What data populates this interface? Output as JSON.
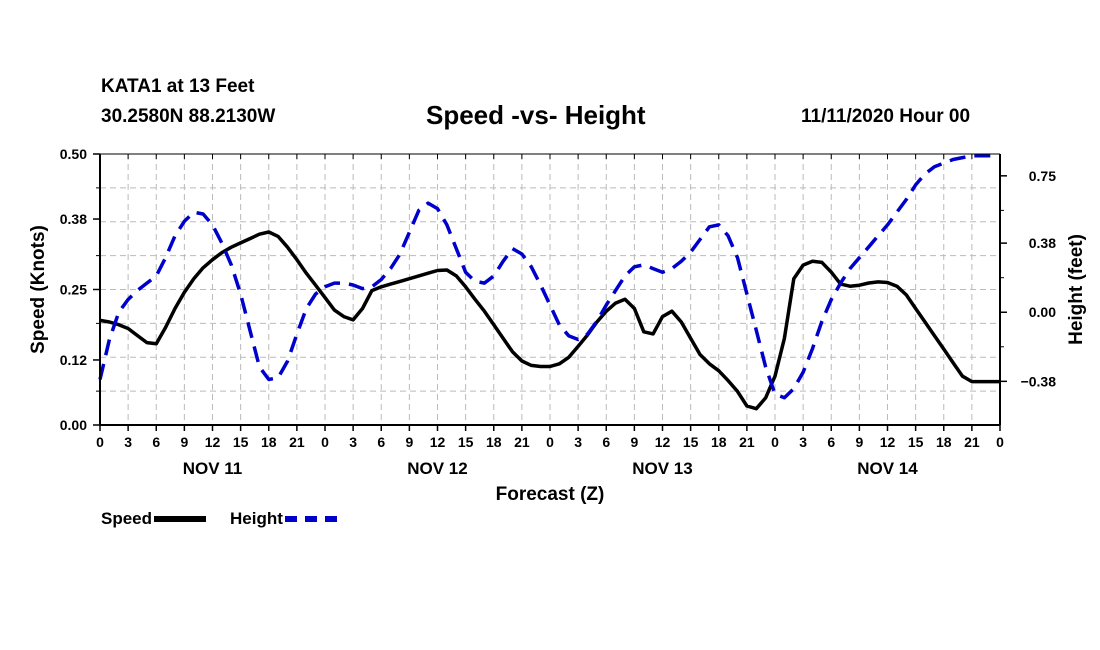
{
  "header": {
    "station": "KATA1 at 13 Feet",
    "location": "30.2580N 88.2130W",
    "title": "Speed -vs- Height",
    "run": "11/11/2020 Hour 00"
  },
  "legend": {
    "speed_label": "Speed",
    "height_label": "Height"
  },
  "colors": {
    "speed": "#000000",
    "height": "#0000cc",
    "grid": "#bbbbbb"
  },
  "chart_data": {
    "type": "line",
    "title": "Speed -vs- Height",
    "xlabel": "Forecast (Z)",
    "ylabel_left": "Speed (Knots)",
    "ylabel_right": "Height (feet)",
    "x_range_hours": [
      0,
      96
    ],
    "y_left_range": [
      0,
      0.5
    ],
    "y_right_range": [
      -0.62,
      0.87
    ],
    "y_left_ticks": [
      0.0,
      0.12,
      0.25,
      0.38,
      0.5
    ],
    "y_left_tick_labels": [
      "0.00",
      "0.12",
      "0.25",
      "0.38",
      "0.50"
    ],
    "y_right_ticks": [
      -0.38,
      0.0,
      0.38,
      0.75
    ],
    "y_right_tick_labels": [
      "−0.38",
      "0.00",
      "0.38",
      "0.75"
    ],
    "x_ticks_hours": [
      0,
      3,
      6,
      9,
      12,
      15,
      18,
      21,
      24,
      27,
      30,
      33,
      36,
      39,
      42,
      45,
      48,
      51,
      54,
      57,
      60,
      63,
      66,
      69,
      72,
      75,
      78,
      81,
      84,
      87,
      90,
      93,
      96
    ],
    "x_tick_labels": [
      "0",
      "3",
      "6",
      "9",
      "12",
      "15",
      "18",
      "21",
      "0",
      "3",
      "6",
      "9",
      "12",
      "15",
      "18",
      "21",
      "0",
      "3",
      "6",
      "9",
      "12",
      "15",
      "18",
      "21",
      "0",
      "3",
      "6",
      "9",
      "12",
      "15",
      "18",
      "21",
      "0"
    ],
    "date_labels": [
      {
        "hour": 12,
        "label": "NOV 11"
      },
      {
        "hour": 36,
        "label": "NOV 12"
      },
      {
        "hour": 60,
        "label": "NOV 13"
      },
      {
        "hour": 84,
        "label": "NOV 14"
      }
    ],
    "grid": true,
    "series": [
      {
        "name": "Speed",
        "axis": "left",
        "style": "solid",
        "x": [
          0,
          1,
          2,
          3,
          4,
          5,
          6,
          7,
          8,
          9,
          10,
          11,
          12,
          13,
          14,
          15,
          16,
          17,
          18,
          19,
          20,
          21,
          22,
          23,
          24,
          25,
          26,
          27,
          28,
          29,
          30,
          31,
          32,
          33,
          34,
          35,
          36,
          37,
          38,
          39,
          40,
          41,
          42,
          43,
          44,
          45,
          46,
          47,
          48,
          49,
          50,
          51,
          52,
          53,
          54,
          55,
          56,
          57,
          58,
          59,
          60,
          61,
          62,
          63,
          64,
          65,
          66,
          67,
          68,
          69,
          70,
          71,
          72,
          73,
          74,
          75,
          76,
          77,
          78,
          79,
          80,
          81,
          82,
          83,
          84,
          85,
          86,
          87,
          88,
          89,
          90,
          91,
          92,
          93,
          94,
          95,
          96
        ],
        "values": [
          0.193,
          0.19,
          0.185,
          0.178,
          0.165,
          0.152,
          0.15,
          0.18,
          0.215,
          0.245,
          0.27,
          0.29,
          0.305,
          0.318,
          0.328,
          0.336,
          0.344,
          0.352,
          0.356,
          0.348,
          0.328,
          0.305,
          0.28,
          0.258,
          0.235,
          0.212,
          0.2,
          0.194,
          0.215,
          0.248,
          0.255,
          0.26,
          0.265,
          0.27,
          0.275,
          0.28,
          0.285,
          0.286,
          0.275,
          0.255,
          0.232,
          0.21,
          0.185,
          0.16,
          0.135,
          0.118,
          0.11,
          0.108,
          0.108,
          0.113,
          0.125,
          0.145,
          0.166,
          0.19,
          0.21,
          0.225,
          0.232,
          0.215,
          0.172,
          0.168,
          0.2,
          0.21,
          0.19,
          0.16,
          0.13,
          0.113,
          0.1,
          0.082,
          0.062,
          0.035,
          0.03,
          0.05,
          0.09,
          0.16,
          0.27,
          0.295,
          0.302,
          0.3,
          0.282,
          0.26,
          0.256,
          0.258,
          0.262,
          0.264,
          0.263,
          0.256,
          0.24,
          0.215,
          0.19,
          0.165,
          0.14,
          0.115,
          0.09,
          0.08,
          0.08,
          0.08,
          0.08
        ]
      },
      {
        "name": "Height",
        "axis": "right",
        "style": "dashed",
        "x": [
          0,
          1,
          2,
          3,
          4,
          5,
          6,
          7,
          8,
          9,
          10,
          11,
          12,
          13,
          14,
          15,
          16,
          17,
          18,
          19,
          20,
          21,
          22,
          23,
          24,
          25,
          26,
          27,
          28,
          29,
          30,
          31,
          32,
          33,
          34,
          35,
          36,
          37,
          38,
          39,
          40,
          41,
          42,
          43,
          44,
          45,
          46,
          47,
          48,
          49,
          50,
          51,
          52,
          53,
          54,
          55,
          56,
          57,
          58,
          59,
          60,
          61,
          62,
          63,
          64,
          65,
          66,
          67,
          68,
          69,
          70,
          71,
          72,
          73,
          74,
          75,
          76,
          77,
          78,
          79,
          80,
          81,
          82,
          83,
          84,
          85,
          86,
          87,
          88,
          89,
          90,
          91,
          92,
          93,
          94,
          95,
          96
        ],
        "values": [
          -0.37,
          -0.15,
          0.0,
          0.07,
          0.12,
          0.16,
          0.2,
          0.3,
          0.42,
          0.5,
          0.55,
          0.54,
          0.48,
          0.38,
          0.26,
          0.1,
          -0.1,
          -0.3,
          -0.37,
          -0.36,
          -0.27,
          -0.12,
          0.02,
          0.1,
          0.14,
          0.16,
          0.16,
          0.15,
          0.13,
          0.14,
          0.18,
          0.24,
          0.32,
          0.44,
          0.56,
          0.6,
          0.57,
          0.48,
          0.35,
          0.22,
          0.17,
          0.16,
          0.2,
          0.28,
          0.35,
          0.32,
          0.25,
          0.15,
          0.04,
          -0.07,
          -0.13,
          -0.15,
          -0.12,
          -0.05,
          0.04,
          0.12,
          0.2,
          0.25,
          0.26,
          0.24,
          0.22,
          0.24,
          0.28,
          0.33,
          0.4,
          0.47,
          0.48,
          0.42,
          0.3,
          0.1,
          -0.1,
          -0.3,
          -0.45,
          -0.47,
          -0.42,
          -0.33,
          -0.2,
          -0.05,
          0.07,
          0.16,
          0.24,
          0.3,
          0.36,
          0.42,
          0.48,
          0.55,
          0.62,
          0.7,
          0.76,
          0.8,
          0.82,
          0.84,
          0.85,
          0.86,
          0.86,
          0.86,
          0.86
        ]
      }
    ]
  }
}
